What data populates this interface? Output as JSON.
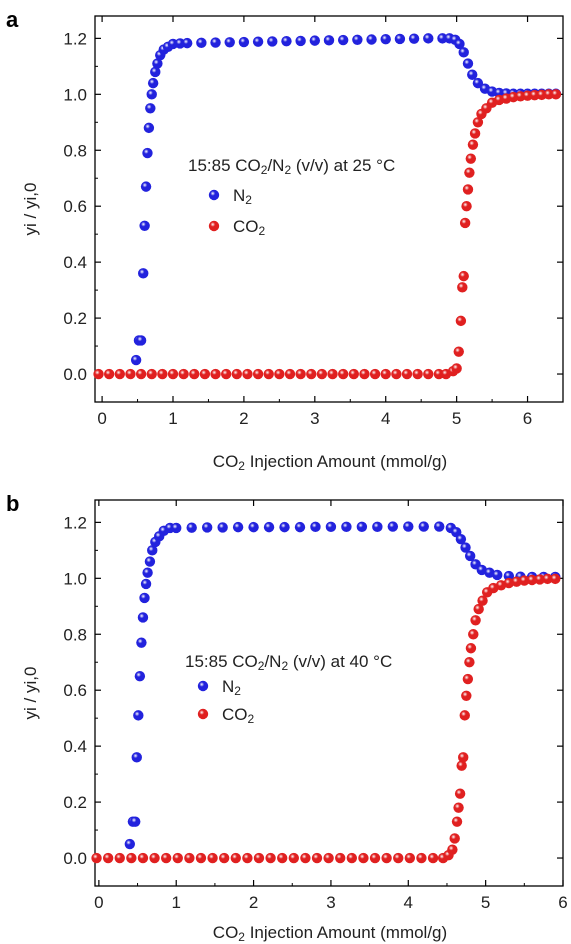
{
  "chart_data": [
    {
      "type": "scatter",
      "panel_label": "a",
      "annotation": "15:85 CO2/N2 (v/v) at 25 °C",
      "annotation_parts": [
        "15:85 CO",
        "2",
        "/N",
        "2",
        " (v/v) at 25 °C"
      ],
      "xlabel": "CO2 Injection Amount (mmol/g)",
      "xlabel_parts": [
        "CO",
        "2",
        " Injection Amount (mmol/g)"
      ],
      "ylabel": "yi / yi,0",
      "xlim": [
        -0.1,
        6.5
      ],
      "ylim": [
        -0.1,
        1.28
      ],
      "xticks": [
        0,
        1,
        2,
        3,
        4,
        5,
        6
      ],
      "yticks": [
        0.0,
        0.2,
        0.4,
        0.6,
        0.8,
        1.0,
        1.2
      ],
      "ytick_labels": [
        "0.0",
        "0.2",
        "0.4",
        "0.6",
        "0.8",
        "1.0",
        "1.2"
      ],
      "legend_position": "inside-center",
      "series": [
        {
          "name": "N2",
          "label_parts": [
            "N",
            "2"
          ],
          "color": "#2222dd",
          "points": [
            [
              0.48,
              0.05
            ],
            [
              0.52,
              0.12
            ],
            [
              0.55,
              0.12
            ],
            [
              0.58,
              0.36
            ],
            [
              0.6,
              0.53
            ],
            [
              0.62,
              0.67
            ],
            [
              0.64,
              0.79
            ],
            [
              0.66,
              0.88
            ],
            [
              0.68,
              0.95
            ],
            [
              0.7,
              1.0
            ],
            [
              0.72,
              1.04
            ],
            [
              0.75,
              1.08
            ],
            [
              0.78,
              1.11
            ],
            [
              0.82,
              1.14
            ],
            [
              0.87,
              1.16
            ],
            [
              0.93,
              1.17
            ],
            [
              1.0,
              1.18
            ],
            [
              1.1,
              1.182
            ],
            [
              1.2,
              1.183
            ],
            [
              1.4,
              1.184
            ],
            [
              1.6,
              1.185
            ],
            [
              1.8,
              1.186
            ],
            [
              2.0,
              1.187
            ],
            [
              2.2,
              1.188
            ],
            [
              2.4,
              1.189
            ],
            [
              2.6,
              1.19
            ],
            [
              2.8,
              1.191
            ],
            [
              3.0,
              1.192
            ],
            [
              3.2,
              1.193
            ],
            [
              3.4,
              1.194
            ],
            [
              3.6,
              1.195
            ],
            [
              3.8,
              1.196
            ],
            [
              4.0,
              1.197
            ],
            [
              4.2,
              1.198
            ],
            [
              4.4,
              1.199
            ],
            [
              4.6,
              1.2
            ],
            [
              4.8,
              1.2
            ],
            [
              4.9,
              1.2
            ],
            [
              4.98,
              1.195
            ],
            [
              5.04,
              1.18
            ],
            [
              5.1,
              1.15
            ],
            [
              5.16,
              1.11
            ],
            [
              5.22,
              1.07
            ],
            [
              5.3,
              1.04
            ],
            [
              5.4,
              1.02
            ],
            [
              5.5,
              1.01
            ],
            [
              5.6,
              1.005
            ],
            [
              5.7,
              1.003
            ],
            [
              5.8,
              1.002
            ],
            [
              5.9,
              1.002
            ],
            [
              6.0,
              1.002
            ],
            [
              6.1,
              1.002
            ],
            [
              6.2,
              1.002
            ],
            [
              6.3,
              1.002
            ],
            [
              6.4,
              1.002
            ]
          ]
        },
        {
          "name": "CO2",
          "label_parts": [
            "CO",
            "2"
          ],
          "color": "#e02020",
          "points": [
            [
              -0.05,
              0.0
            ],
            [
              0.1,
              0.0
            ],
            [
              0.25,
              0.0
            ],
            [
              0.4,
              0.0
            ],
            [
              0.55,
              0.0
            ],
            [
              0.7,
              0.0
            ],
            [
              0.85,
              0.0
            ],
            [
              1.0,
              0.0
            ],
            [
              1.15,
              0.0
            ],
            [
              1.3,
              0.0
            ],
            [
              1.45,
              0.0
            ],
            [
              1.6,
              0.0
            ],
            [
              1.75,
              0.0
            ],
            [
              1.9,
              0.0
            ],
            [
              2.05,
              0.0
            ],
            [
              2.2,
              0.0
            ],
            [
              2.35,
              0.0
            ],
            [
              2.5,
              0.0
            ],
            [
              2.65,
              0.0
            ],
            [
              2.8,
              0.0
            ],
            [
              2.95,
              0.0
            ],
            [
              3.1,
              0.0
            ],
            [
              3.25,
              0.0
            ],
            [
              3.4,
              0.0
            ],
            [
              3.55,
              0.0
            ],
            [
              3.7,
              0.0
            ],
            [
              3.85,
              0.0
            ],
            [
              4.0,
              0.0
            ],
            [
              4.15,
              0.0
            ],
            [
              4.3,
              0.0
            ],
            [
              4.45,
              0.0
            ],
            [
              4.6,
              0.0
            ],
            [
              4.75,
              0.0
            ],
            [
              4.85,
              0.0
            ],
            [
              4.95,
              0.01
            ],
            [
              5.0,
              0.02
            ],
            [
              5.03,
              0.08
            ],
            [
              5.06,
              0.19
            ],
            [
              5.08,
              0.31
            ],
            [
              5.1,
              0.35
            ],
            [
              5.12,
              0.54
            ],
            [
              5.14,
              0.6
            ],
            [
              5.16,
              0.66
            ],
            [
              5.18,
              0.72
            ],
            [
              5.2,
              0.77
            ],
            [
              5.23,
              0.82
            ],
            [
              5.26,
              0.86
            ],
            [
              5.3,
              0.9
            ],
            [
              5.35,
              0.93
            ],
            [
              5.42,
              0.95
            ],
            [
              5.5,
              0.97
            ],
            [
              5.6,
              0.98
            ],
            [
              5.7,
              0.985
            ],
            [
              5.8,
              0.99
            ],
            [
              5.9,
              0.993
            ],
            [
              6.0,
              0.995
            ],
            [
              6.1,
              0.997
            ],
            [
              6.2,
              0.998
            ],
            [
              6.3,
              1.0
            ],
            [
              6.4,
              1.0
            ]
          ]
        }
      ]
    },
    {
      "type": "scatter",
      "panel_label": "b",
      "annotation": "15:85 CO2/N2 (v/v) at 40 °C",
      "annotation_parts": [
        "15:85 CO",
        "2",
        "/N",
        "2",
        " (v/v) at 40 °C"
      ],
      "xlabel": "CO2 Injection Amount (mmol/g)",
      "xlabel_parts": [
        "CO",
        "2",
        " Injection Amount (mmol/g)"
      ],
      "ylabel": "yi / yi,0",
      "xlim": [
        -0.05,
        6.0
      ],
      "ylim": [
        -0.1,
        1.28
      ],
      "xticks": [
        0,
        1,
        2,
        3,
        4,
        5,
        6
      ],
      "yticks": [
        0.0,
        0.2,
        0.4,
        0.6,
        0.8,
        1.0,
        1.2
      ],
      "ytick_labels": [
        "0.0",
        "0.2",
        "0.4",
        "0.6",
        "0.8",
        "1.0",
        "1.2"
      ],
      "legend_position": "inside-center",
      "series": [
        {
          "name": "N2",
          "label_parts": [
            "N",
            "2"
          ],
          "color": "#2222dd",
          "points": [
            [
              0.4,
              0.05
            ],
            [
              0.44,
              0.13
            ],
            [
              0.47,
              0.13
            ],
            [
              0.49,
              0.36
            ],
            [
              0.51,
              0.51
            ],
            [
              0.53,
              0.65
            ],
            [
              0.55,
              0.77
            ],
            [
              0.57,
              0.86
            ],
            [
              0.59,
              0.93
            ],
            [
              0.61,
              0.98
            ],
            [
              0.63,
              1.02
            ],
            [
              0.66,
              1.06
            ],
            [
              0.69,
              1.1
            ],
            [
              0.73,
              1.13
            ],
            [
              0.78,
              1.15
            ],
            [
              0.84,
              1.17
            ],
            [
              0.92,
              1.18
            ],
            [
              1.0,
              1.18
            ],
            [
              1.2,
              1.181
            ],
            [
              1.4,
              1.182
            ],
            [
              1.6,
              1.182
            ],
            [
              1.8,
              1.183
            ],
            [
              2.0,
              1.183
            ],
            [
              2.2,
              1.183
            ],
            [
              2.4,
              1.183
            ],
            [
              2.6,
              1.183
            ],
            [
              2.8,
              1.184
            ],
            [
              3.0,
              1.184
            ],
            [
              3.2,
              1.184
            ],
            [
              3.4,
              1.184
            ],
            [
              3.6,
              1.184
            ],
            [
              3.8,
              1.185
            ],
            [
              4.0,
              1.185
            ],
            [
              4.2,
              1.185
            ],
            [
              4.4,
              1.185
            ],
            [
              4.55,
              1.18
            ],
            [
              4.62,
              1.165
            ],
            [
              4.68,
              1.14
            ],
            [
              4.74,
              1.11
            ],
            [
              4.8,
              1.08
            ],
            [
              4.87,
              1.05
            ],
            [
              4.95,
              1.03
            ],
            [
              5.05,
              1.02
            ],
            [
              5.15,
              1.012
            ],
            [
              5.3,
              1.008
            ],
            [
              5.45,
              1.006
            ],
            [
              5.6,
              1.005
            ],
            [
              5.75,
              1.005
            ],
            [
              5.9,
              1.005
            ]
          ]
        },
        {
          "name": "CO2",
          "label_parts": [
            "CO",
            "2"
          ],
          "color": "#e02020",
          "points": [
            [
              -0.03,
              0.0
            ],
            [
              0.12,
              0.0
            ],
            [
              0.27,
              0.0
            ],
            [
              0.42,
              0.0
            ],
            [
              0.57,
              0.0
            ],
            [
              0.72,
              0.0
            ],
            [
              0.87,
              0.0
            ],
            [
              1.02,
              0.0
            ],
            [
              1.17,
              0.0
            ],
            [
              1.32,
              0.0
            ],
            [
              1.47,
              0.0
            ],
            [
              1.62,
              0.0
            ],
            [
              1.77,
              0.0
            ],
            [
              1.92,
              0.0
            ],
            [
              2.07,
              0.0
            ],
            [
              2.22,
              0.0
            ],
            [
              2.37,
              0.0
            ],
            [
              2.52,
              0.0
            ],
            [
              2.67,
              0.0
            ],
            [
              2.82,
              0.0
            ],
            [
              2.97,
              0.0
            ],
            [
              3.12,
              0.0
            ],
            [
              3.27,
              0.0
            ],
            [
              3.42,
              0.0
            ],
            [
              3.57,
              0.0
            ],
            [
              3.72,
              0.0
            ],
            [
              3.87,
              0.0
            ],
            [
              4.02,
              0.0
            ],
            [
              4.17,
              0.0
            ],
            [
              4.32,
              0.0
            ],
            [
              4.45,
              0.0
            ],
            [
              4.52,
              0.01
            ],
            [
              4.57,
              0.03
            ],
            [
              4.6,
              0.07
            ],
            [
              4.63,
              0.13
            ],
            [
              4.65,
              0.18
            ],
            [
              4.67,
              0.23
            ],
            [
              4.69,
              0.33
            ],
            [
              4.71,
              0.36
            ],
            [
              4.73,
              0.51
            ],
            [
              4.75,
              0.58
            ],
            [
              4.77,
              0.64
            ],
            [
              4.79,
              0.7
            ],
            [
              4.81,
              0.75
            ],
            [
              4.84,
              0.8
            ],
            [
              4.87,
              0.85
            ],
            [
              4.91,
              0.89
            ],
            [
              4.96,
              0.92
            ],
            [
              5.02,
              0.95
            ],
            [
              5.1,
              0.965
            ],
            [
              5.2,
              0.975
            ],
            [
              5.3,
              0.983
            ],
            [
              5.4,
              0.988
            ],
            [
              5.5,
              0.992
            ],
            [
              5.6,
              0.994
            ],
            [
              5.7,
              0.996
            ],
            [
              5.8,
              0.998
            ],
            [
              5.9,
              0.998
            ]
          ]
        }
      ]
    }
  ]
}
